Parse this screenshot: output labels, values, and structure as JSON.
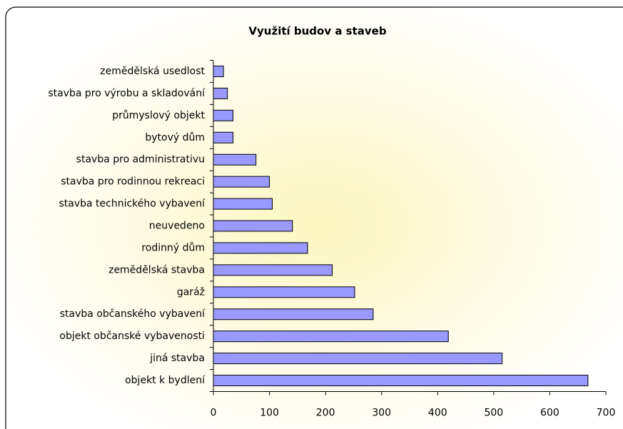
{
  "chart_data": {
    "type": "hbar",
    "title": "Využití budov a staveb",
    "categories": [
      "objekt k bydlení",
      "jiná stavba",
      "objekt občanské vybavenosti",
      "stavba občanského vybavení",
      "garáž",
      "zemědělská stavba",
      "rodinný dům",
      "neuvedeno",
      "stavba technického vybavení",
      "stavba pro rodinnou rekreaci",
      "stavba pro administrativu",
      "bytový dům",
      "průmyslový objekt",
      "stavba pro výrobu a skladování",
      "zemědělská usedlost"
    ],
    "values": [
      668,
      515,
      419,
      285,
      252,
      212,
      168,
      141,
      105,
      100,
      76,
      35,
      35,
      25,
      18
    ],
    "color": "#9999ff",
    "xlim": [
      0,
      700
    ],
    "xticks": [
      0,
      100,
      200,
      300,
      400,
      500,
      600,
      700
    ],
    "grid": false
  }
}
